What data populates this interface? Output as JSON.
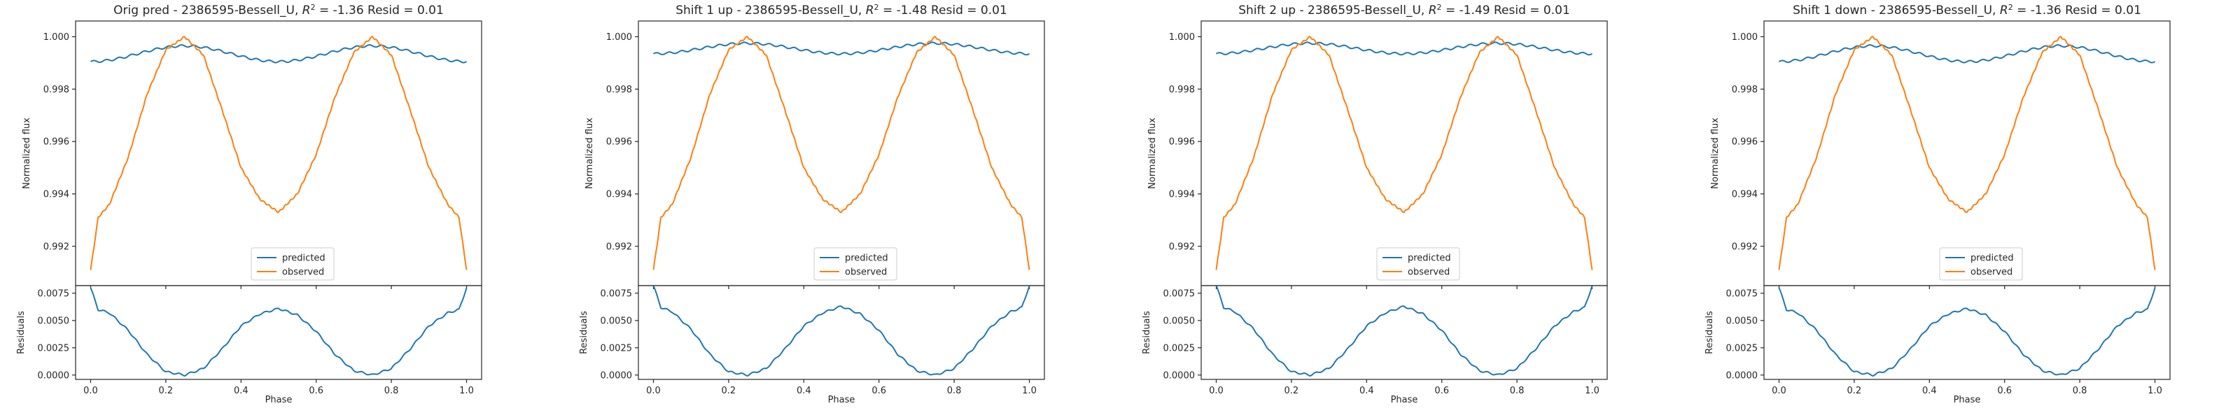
{
  "colors": {
    "predicted": "#1f77b4",
    "observed": "#ff7f0e",
    "axes": "#262626"
  },
  "panels": [
    {
      "title_prefix": "Orig pred - 2386595-Bessell_U, ",
      "title_r2": "R",
      "title_sup": "2",
      "title_suffix": " = -1.36 Resid = 0.01"
    },
    {
      "title_prefix": "Shift 1 up - 2386595-Bessell_U, ",
      "title_r2": "R",
      "title_sup": "2",
      "title_suffix": " = -1.48 Resid = 0.01"
    },
    {
      "title_prefix": "Shift 2 up - 2386595-Bessell_U, ",
      "title_r2": "R",
      "title_sup": "2",
      "title_suffix": " = -1.49 Resid = 0.01"
    },
    {
      "title_prefix": "Shift 1 down - 2386595-Bessell_U, ",
      "title_r2": "R",
      "title_sup": "2",
      "title_suffix": " = -1.36 Resid = 0.01"
    }
  ],
  "labels": {
    "ylabel_top": "Normalized flux",
    "ylabel_bottom": "Residuals",
    "xlabel": "Phase"
  },
  "legend": {
    "predicted": "predicted",
    "observed": "observed",
    "placement": "lower-center"
  },
  "chart_data": [
    {
      "type": "line",
      "title": "Orig pred - 2386595-Bessell_U, R^2 = -1.36 Resid = 0.01",
      "xlabel": "Phase",
      "ylabel": "Normalized flux",
      "residual_ylabel": "Residuals",
      "xlim": [
        -0.04,
        1.04
      ],
      "ylim": [
        0.9905,
        1.0006
      ],
      "residual_ylim": [
        -0.0004,
        0.0082
      ],
      "xticks": [
        "0.0",
        "0.2",
        "0.4",
        "0.6",
        "0.8",
        "1.0"
      ],
      "yticks": [
        "0.992",
        "0.994",
        "0.996",
        "0.998",
        "1.000"
      ],
      "residual_yticks": [
        "0.0000",
        "0.0025",
        "0.0050",
        "0.0075"
      ],
      "grid": false,
      "series": [
        {
          "name": "predicted",
          "model": {
            "base": 0.99935,
            "amp": 0.0003,
            "ripple": 4e-05
          }
        },
        {
          "name": "observed",
          "phase": [
            0.0,
            0.02,
            0.05,
            0.1,
            0.15,
            0.2,
            0.25,
            0.3,
            0.35,
            0.4,
            0.45,
            0.5,
            0.55,
            0.6,
            0.65,
            0.7,
            0.75,
            0.8,
            0.85,
            0.9,
            0.95,
            0.98,
            1.0
          ],
          "values": [
            0.9911,
            0.9931,
            0.9936,
            0.9954,
            0.9978,
            0.9995,
            1.0,
            0.9993,
            0.9972,
            0.995,
            0.9938,
            0.9933,
            0.994,
            0.9955,
            0.9977,
            0.9994,
            1.0,
            0.9993,
            0.9972,
            0.995,
            0.9936,
            0.9931,
            0.9911
          ]
        }
      ],
      "residuals": {
        "phase": [
          0.0,
          0.02,
          0.05,
          0.1,
          0.15,
          0.2,
          0.25,
          0.3,
          0.35,
          0.4,
          0.45,
          0.5,
          0.55,
          0.6,
          0.65,
          0.7,
          0.75,
          0.8,
          0.85,
          0.9,
          0.95,
          0.98,
          1.0
        ],
        "values": [
          0.008,
          0.006,
          0.0057,
          0.0041,
          0.0019,
          0.0003,
          0.0,
          0.0006,
          0.0024,
          0.0045,
          0.0056,
          0.0061,
          0.0055,
          0.004,
          0.0019,
          0.0004,
          0.0,
          0.0006,
          0.0024,
          0.0045,
          0.0057,
          0.006,
          0.008
        ]
      }
    },
    {
      "type": "line",
      "title": "Shift 1 up - 2386595-Bessell_U, R^2 = -1.48 Resid = 0.01",
      "xlabel": "Phase",
      "ylabel": "Normalized flux",
      "residual_ylabel": "Residuals",
      "xlim": [
        -0.04,
        1.04
      ],
      "ylim": [
        0.9905,
        1.0006
      ],
      "residual_ylim": [
        -0.0004,
        0.0082
      ],
      "xticks": [
        "0.0",
        "0.2",
        "0.4",
        "0.6",
        "0.8",
        "1.0"
      ],
      "yticks": [
        "0.992",
        "0.994",
        "0.996",
        "0.998",
        "1.000"
      ],
      "residual_yticks": [
        "0.0000",
        "0.0025",
        "0.0050",
        "0.0075"
      ],
      "grid": false,
      "series": [
        {
          "name": "predicted",
          "model": {
            "base": 0.99955,
            "amp": 0.0002,
            "ripple": 4e-05
          }
        },
        {
          "name": "observed",
          "phase": [
            0.0,
            0.02,
            0.05,
            0.1,
            0.15,
            0.2,
            0.25,
            0.3,
            0.35,
            0.4,
            0.45,
            0.5,
            0.55,
            0.6,
            0.65,
            0.7,
            0.75,
            0.8,
            0.85,
            0.9,
            0.95,
            0.98,
            1.0
          ],
          "values": [
            0.9911,
            0.9931,
            0.9936,
            0.9954,
            0.9978,
            0.9995,
            1.0,
            0.9993,
            0.9972,
            0.995,
            0.9938,
            0.9933,
            0.994,
            0.9955,
            0.9977,
            0.9994,
            1.0,
            0.9993,
            0.9972,
            0.995,
            0.9936,
            0.9931,
            0.9911
          ]
        }
      ],
      "residuals": {
        "phase": [
          0.0,
          0.02,
          0.05,
          0.1,
          0.15,
          0.2,
          0.25,
          0.3,
          0.35,
          0.4,
          0.45,
          0.5,
          0.55,
          0.6,
          0.65,
          0.7,
          0.75,
          0.8,
          0.85,
          0.9,
          0.95,
          0.98,
          1.0
        ],
        "values": [
          0.0082,
          0.0062,
          0.0058,
          0.0042,
          0.0019,
          0.0003,
          0.0,
          0.0006,
          0.0024,
          0.0045,
          0.0057,
          0.0063,
          0.0056,
          0.0041,
          0.0019,
          0.0004,
          0.0,
          0.0006,
          0.0024,
          0.0045,
          0.0058,
          0.0062,
          0.0082
        ]
      }
    },
    {
      "type": "line",
      "title": "Shift 2 up - 2386595-Bessell_U, R^2 = -1.49 Resid = 0.01",
      "xlabel": "Phase",
      "ylabel": "Normalized flux",
      "residual_ylabel": "Residuals",
      "xlim": [
        -0.04,
        1.04
      ],
      "ylim": [
        0.9905,
        1.0006
      ],
      "residual_ylim": [
        -0.0004,
        0.0082
      ],
      "xticks": [
        "0.0",
        "0.2",
        "0.4",
        "0.6",
        "0.8",
        "1.0"
      ],
      "yticks": [
        "0.992",
        "0.994",
        "0.996",
        "0.998",
        "1.000"
      ],
      "residual_yticks": [
        "0.0000",
        "0.0025",
        "0.0050",
        "0.0075"
      ],
      "grid": false,
      "series": [
        {
          "name": "predicted",
          "model": {
            "base": 0.99955,
            "amp": 0.0002,
            "ripple": 4e-05
          }
        },
        {
          "name": "observed",
          "phase": [
            0.0,
            0.02,
            0.05,
            0.1,
            0.15,
            0.2,
            0.25,
            0.3,
            0.35,
            0.4,
            0.45,
            0.5,
            0.55,
            0.6,
            0.65,
            0.7,
            0.75,
            0.8,
            0.85,
            0.9,
            0.95,
            0.98,
            1.0
          ],
          "values": [
            0.9911,
            0.9931,
            0.9936,
            0.9954,
            0.9978,
            0.9995,
            1.0,
            0.9993,
            0.9972,
            0.995,
            0.9938,
            0.9933,
            0.994,
            0.9955,
            0.9977,
            0.9994,
            1.0,
            0.9993,
            0.9972,
            0.995,
            0.9936,
            0.9931,
            0.9911
          ]
        }
      ],
      "residuals": {
        "phase": [
          0.0,
          0.02,
          0.05,
          0.1,
          0.15,
          0.2,
          0.25,
          0.3,
          0.35,
          0.4,
          0.45,
          0.5,
          0.55,
          0.6,
          0.65,
          0.7,
          0.75,
          0.8,
          0.85,
          0.9,
          0.95,
          0.98,
          1.0
        ],
        "values": [
          0.0082,
          0.0062,
          0.0058,
          0.0042,
          0.0019,
          0.0003,
          0.0,
          0.0006,
          0.0024,
          0.0045,
          0.0057,
          0.0063,
          0.0056,
          0.0041,
          0.0019,
          0.0004,
          0.0,
          0.0006,
          0.0024,
          0.0045,
          0.0058,
          0.0062,
          0.0082
        ]
      }
    },
    {
      "type": "line",
      "title": "Shift 1 down - 2386595-Bessell_U, R^2 = -1.36 Resid = 0.01",
      "xlabel": "Phase",
      "ylabel": "Normalized flux",
      "residual_ylabel": "Residuals",
      "xlim": [
        -0.04,
        1.04
      ],
      "ylim": [
        0.9905,
        1.0006
      ],
      "residual_ylim": [
        -0.0004,
        0.0082
      ],
      "xticks": [
        "0.0",
        "0.2",
        "0.4",
        "0.6",
        "0.8",
        "1.0"
      ],
      "yticks": [
        "0.992",
        "0.994",
        "0.996",
        "0.998",
        "1.000"
      ],
      "residual_yticks": [
        "0.0000",
        "0.0025",
        "0.0050",
        "0.0075"
      ],
      "grid": false,
      "series": [
        {
          "name": "predicted",
          "model": {
            "base": 0.99935,
            "amp": 0.0003,
            "ripple": 4e-05
          }
        },
        {
          "name": "observed",
          "phase": [
            0.0,
            0.02,
            0.05,
            0.1,
            0.15,
            0.2,
            0.25,
            0.3,
            0.35,
            0.4,
            0.45,
            0.5,
            0.55,
            0.6,
            0.65,
            0.7,
            0.75,
            0.8,
            0.85,
            0.9,
            0.95,
            0.98,
            1.0
          ],
          "values": [
            0.9911,
            0.9931,
            0.9936,
            0.9954,
            0.9978,
            0.9995,
            1.0,
            0.9993,
            0.9972,
            0.995,
            0.9938,
            0.9933,
            0.994,
            0.9955,
            0.9977,
            0.9994,
            1.0,
            0.9993,
            0.9972,
            0.995,
            0.9936,
            0.9931,
            0.9911
          ]
        }
      ],
      "residuals": {
        "phase": [
          0.0,
          0.02,
          0.05,
          0.1,
          0.15,
          0.2,
          0.25,
          0.3,
          0.35,
          0.4,
          0.45,
          0.5,
          0.55,
          0.6,
          0.65,
          0.7,
          0.75,
          0.8,
          0.85,
          0.9,
          0.95,
          0.98,
          1.0
        ],
        "values": [
          0.008,
          0.006,
          0.0057,
          0.0041,
          0.0019,
          0.0003,
          0.0,
          0.0006,
          0.0024,
          0.0045,
          0.0056,
          0.0061,
          0.0055,
          0.004,
          0.0019,
          0.0004,
          0.0,
          0.0006,
          0.0024,
          0.0045,
          0.0057,
          0.006,
          0.008
        ]
      }
    }
  ]
}
